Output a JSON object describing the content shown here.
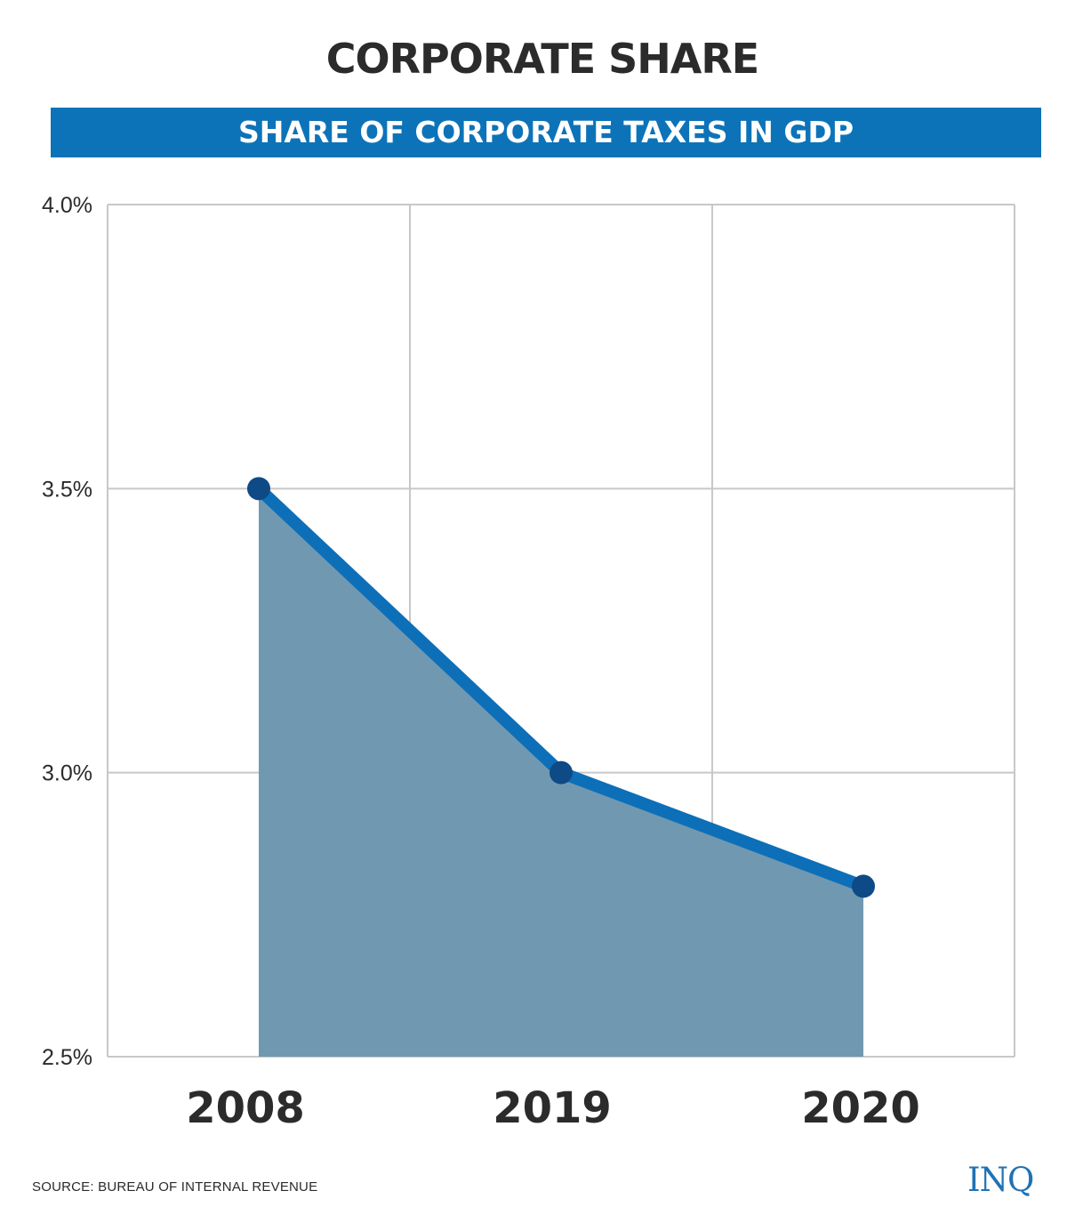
{
  "title": "CORPORATE SHARE",
  "subtitle": "SHARE OF CORPORATE TAXES IN GDP",
  "source": "SOURCE: BUREAU OF INTERNAL REVENUE",
  "logo": "INQ",
  "colors": {
    "band": "#0d73b8",
    "line": "#0d6fb8",
    "marker": "#0e4a86",
    "area": "#7099b1",
    "grid": "#c8c8c8",
    "text": "#2b2b2b"
  },
  "chart_data": {
    "type": "area",
    "title": "SHARE OF CORPORATE TAXES IN GDP",
    "categories": [
      "2008",
      "2019",
      "2020"
    ],
    "values": [
      3.5,
      3.0,
      2.8
    ],
    "ylim": [
      2.5,
      4.0
    ],
    "yticks": [
      2.5,
      3.0,
      3.5,
      4.0
    ],
    "ytick_labels": [
      "2.5%",
      "3.0%",
      "3.5%",
      "4.0%"
    ],
    "xlabel": "",
    "ylabel": "",
    "grid": true,
    "legend": "none"
  }
}
